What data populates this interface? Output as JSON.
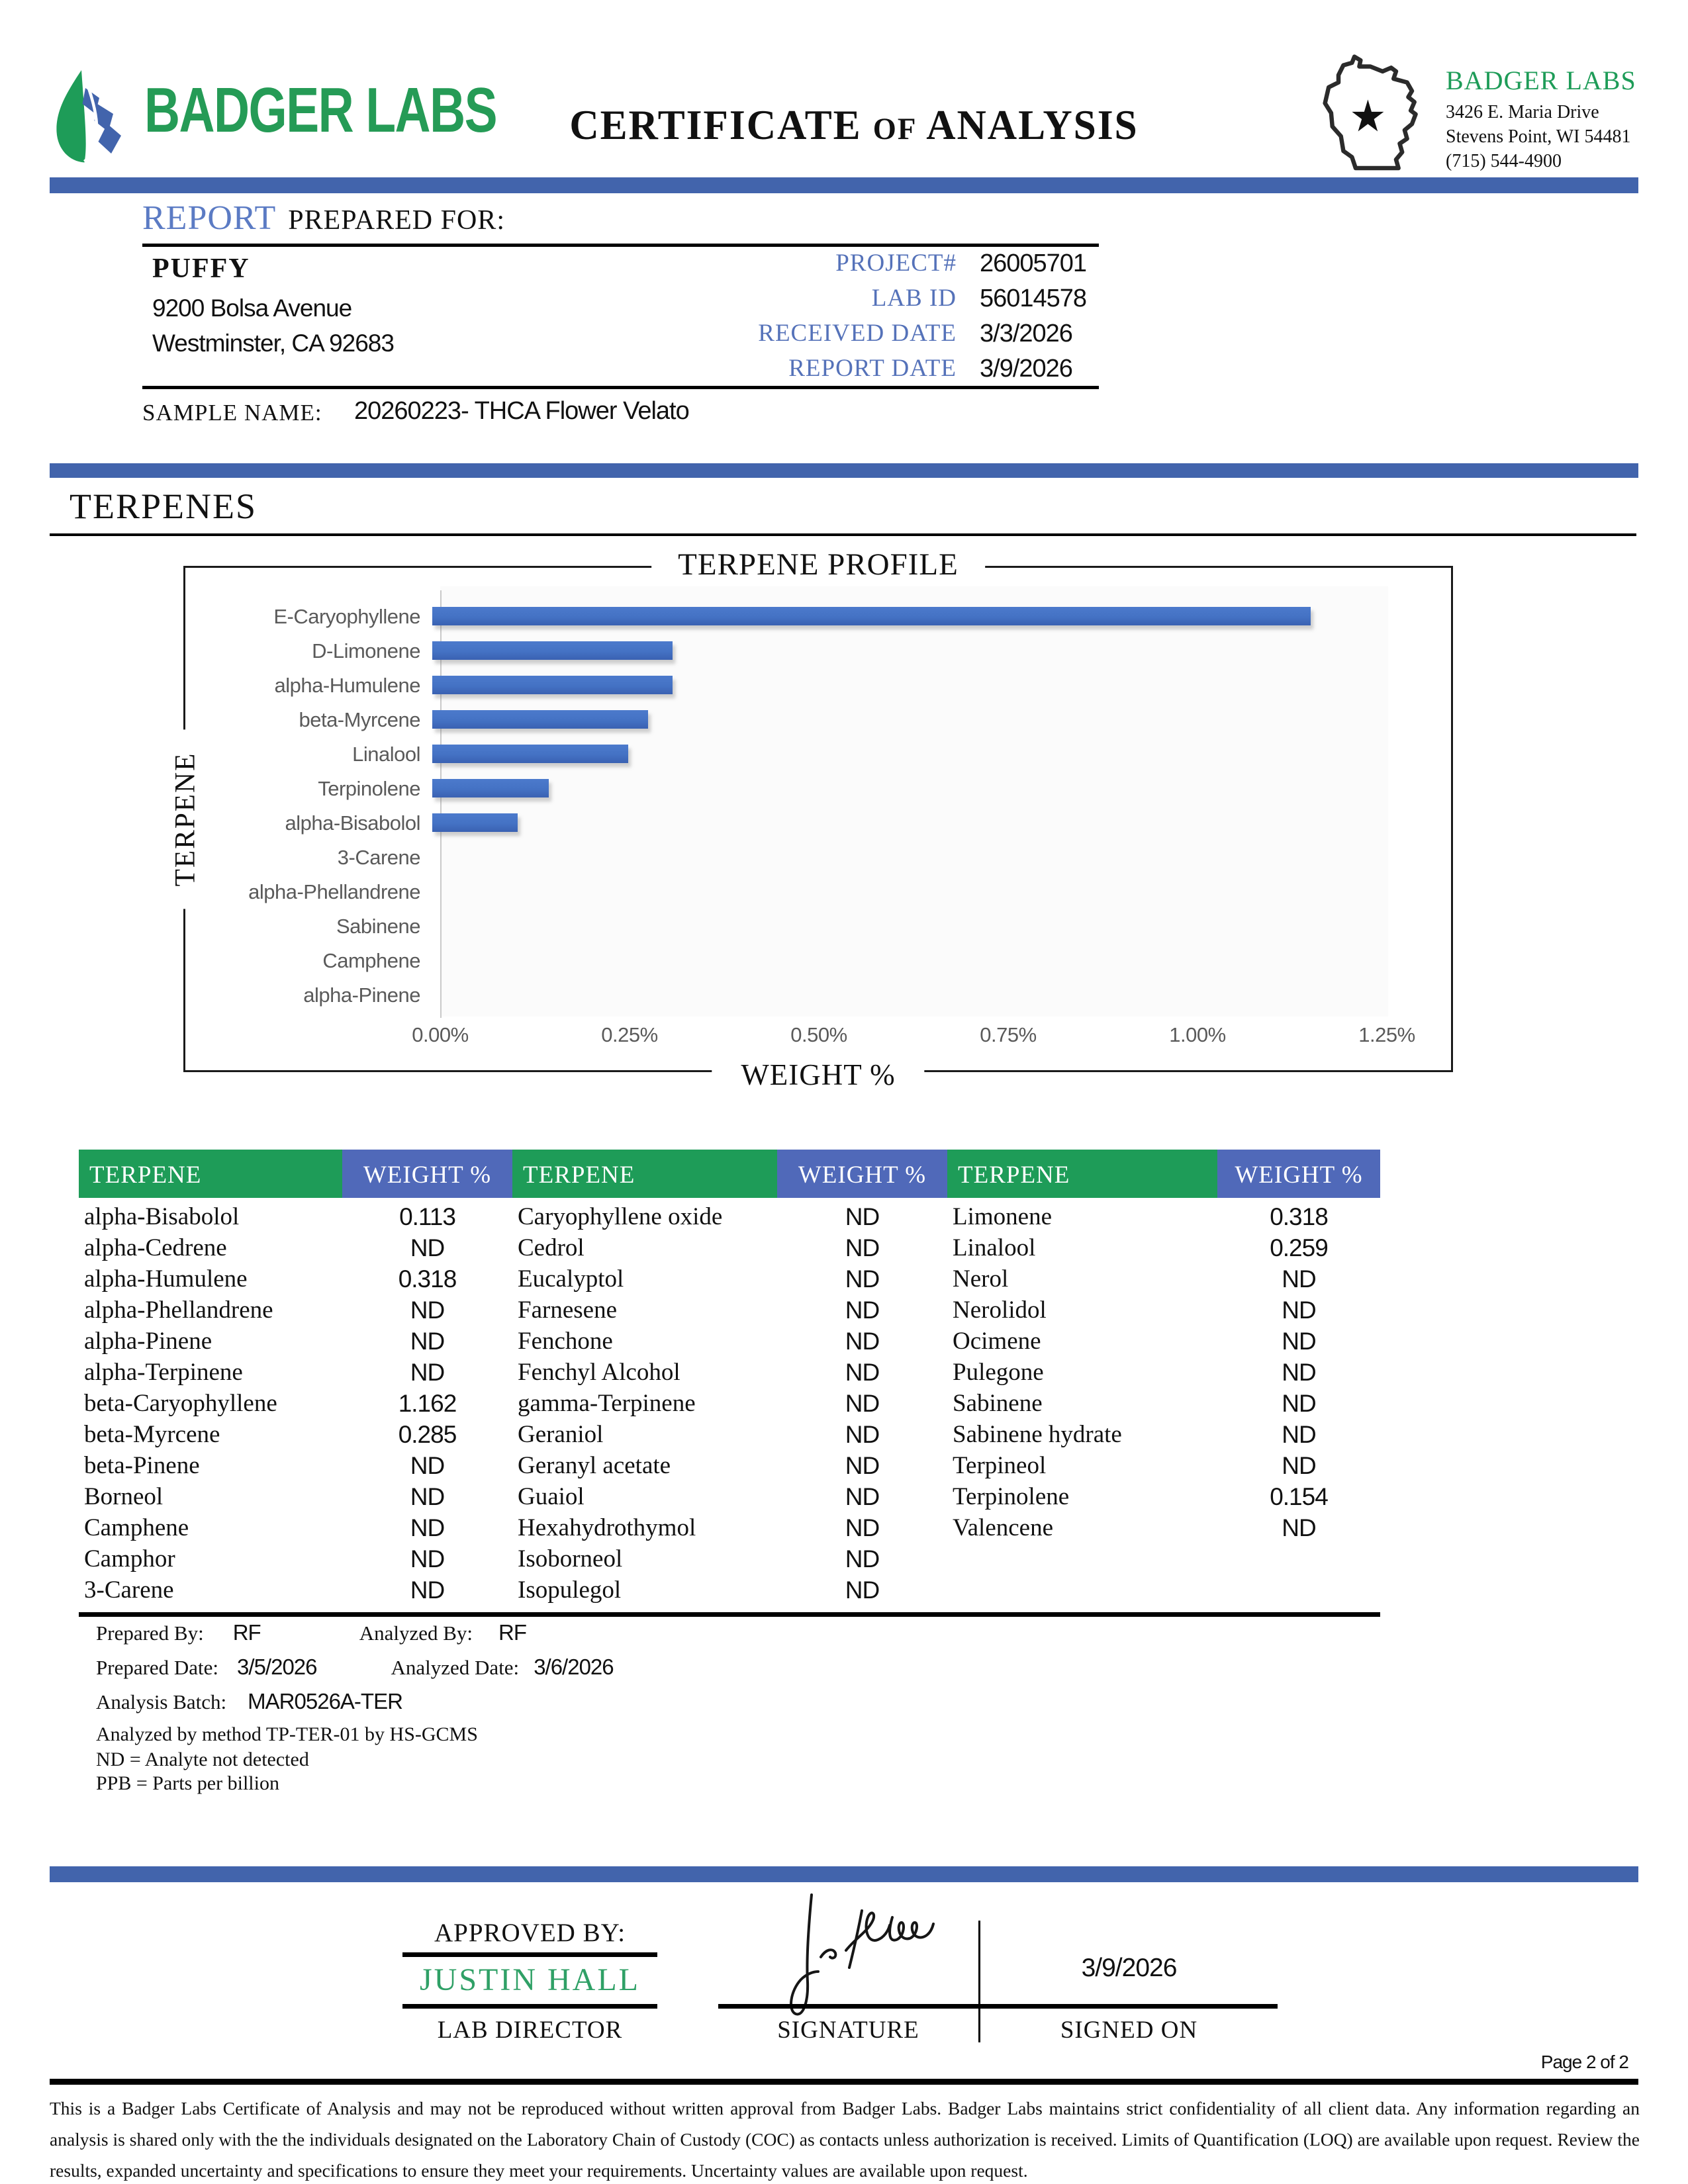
{
  "header": {
    "brand": "BADGER LABS",
    "title_parts": [
      "CERTIFICATE",
      "OF",
      "ANALYSIS"
    ],
    "lab_name": "BADGER LABS",
    "address_line1": "3426 E. Maria Drive",
    "address_line2": "Stevens Point, WI 54481",
    "phone": "(715) 544-4900"
  },
  "report": {
    "section_title_accent": "REPORT",
    "section_title_rest": "PREPARED FOR:",
    "client_name": "PUFFY",
    "client_address1": "9200 Bolsa Avenue",
    "client_address2": "Westminster, CA 92683",
    "info_rows": [
      {
        "label": "PROJECT#",
        "value": "26005701"
      },
      {
        "label": "LAB ID",
        "value": "56014578"
      },
      {
        "label": "RECEIVED DATE",
        "value": "3/3/2026"
      },
      {
        "label": "REPORT DATE",
        "value": "3/9/2026"
      }
    ],
    "sample_name_label": "SAMPLE NAME:",
    "sample_name_value": "20260223- THCA Flower Velato"
  },
  "section": {
    "terpenes_title": "TERPENES"
  },
  "chart_data": {
    "type": "bar",
    "orientation": "horizontal",
    "title": "TERPENE PROFILE",
    "xlabel": "WEIGHT %",
    "ylabel": "TERPENE",
    "categories": [
      "E-Caryophyllene",
      "D-Limonene",
      "alpha-Humulene",
      "beta-Myrcene",
      "Linalool",
      "Terpinolene",
      "alpha-Bisabolol",
      "3-Carene",
      "alpha-Phellandrene",
      "Sabinene",
      "Camphene",
      "alpha-Pinene"
    ],
    "values": [
      1.162,
      0.318,
      0.318,
      0.285,
      0.259,
      0.154,
      0.113,
      0,
      0,
      0,
      0,
      0
    ],
    "x_ticks": [
      "0.00%",
      "0.25%",
      "0.50%",
      "0.75%",
      "1.00%",
      "1.25%"
    ],
    "xlim": [
      0,
      1.25
    ],
    "grid": false,
    "legend": false,
    "bar_color": "#4472C4"
  },
  "results_table": {
    "headers": [
      "TERPENE",
      "WEIGHT %",
      "TERPENE",
      "WEIGHT %",
      "TERPENE",
      "WEIGHT %"
    ],
    "rows": [
      [
        "alpha-Bisabolol",
        "0.113",
        "Caryophyllene oxide",
        "ND",
        "Limonene",
        "0.318"
      ],
      [
        "alpha-Cedrene",
        "ND",
        "Cedrol",
        "ND",
        "Linalool",
        "0.259"
      ],
      [
        "alpha-Humulene",
        "0.318",
        "Eucalyptol",
        "ND",
        "Nerol",
        "ND"
      ],
      [
        "alpha-Phellandrene",
        "ND",
        "Farnesene",
        "ND",
        "Nerolidol",
        "ND"
      ],
      [
        "alpha-Pinene",
        "ND",
        "Fenchone",
        "ND",
        "Ocimene",
        "ND"
      ],
      [
        "alpha-Terpinene",
        "ND",
        "Fenchyl Alcohol",
        "ND",
        "Pulegone",
        "ND"
      ],
      [
        "beta-Caryophyllene",
        "1.162",
        "gamma-Terpinene",
        "ND",
        "Sabinene",
        "ND"
      ],
      [
        "beta-Myrcene",
        "0.285",
        "Geraniol",
        "ND",
        "Sabinene hydrate",
        "ND"
      ],
      [
        "beta-Pinene",
        "ND",
        "Geranyl acetate",
        "ND",
        "Terpineol",
        "ND"
      ],
      [
        "Borneol",
        "ND",
        "Guaiol",
        "ND",
        "Terpinolene",
        "0.154"
      ],
      [
        "Camphene",
        "ND",
        "Hexahydrothymol",
        "ND",
        "Valencene",
        "ND"
      ],
      [
        "Camphor",
        "ND",
        "Isoborneol",
        "ND",
        "",
        ""
      ],
      [
        "3-Carene",
        "ND",
        "Isopulegol",
        "ND",
        "",
        ""
      ]
    ]
  },
  "prep": {
    "prepared_by_label": "Prepared By:",
    "prepared_by": "RF",
    "analyzed_by_label": "Analyzed By:",
    "analyzed_by": "RF",
    "prepared_date_label": "Prepared Date:",
    "prepared_date": "3/5/2026",
    "analyzed_date_label": "Analyzed Date:",
    "analyzed_date": "3/6/2026",
    "analysis_batch_label": "Analysis Batch:",
    "analysis_batch": "MAR0526A-TER",
    "method_note": "Analyzed by method TP-TER-01 by HS-GCMS",
    "nd_note": "ND = Analyte not detected",
    "ppb_note": "PPB = Parts per billion"
  },
  "approval": {
    "approved_by_label": "APPROVED BY:",
    "approver_name": "JUSTIN HALL",
    "approver_title": "LAB DIRECTOR",
    "signature_label": "SIGNATURE",
    "signed_on_label": "SIGNED ON",
    "signed_on_date": "3/9/2026"
  },
  "footer": {
    "page_number": "Page 2 of 2",
    "disclaimer": "This is a Badger Labs Certificate of Analysis and may not be reproduced without written approval from Badger Labs. Badger Labs maintains strict confidentiality of all client data. Any information regarding an analysis is shared only with the the individuals designated on the Laboratory Chain of Custody (COC) as contacts unless authorization is received. Limits of Quantification (LOQ) are available upon request. Review the results, expanded uncertainty and specifications to ensure they meet your requirements. Uncertainty values are available upon request."
  },
  "colors": {
    "accent_bar_blue": "#4264AC",
    "label_blue": "#5572B9",
    "report_blue": "#5B7BC4",
    "brand_green": "#259B56",
    "table_green": "#1E9C58",
    "table_blue": "#5069B9",
    "chart_bar_blue": "#4472C4",
    "approver_green": "#2FA066"
  }
}
